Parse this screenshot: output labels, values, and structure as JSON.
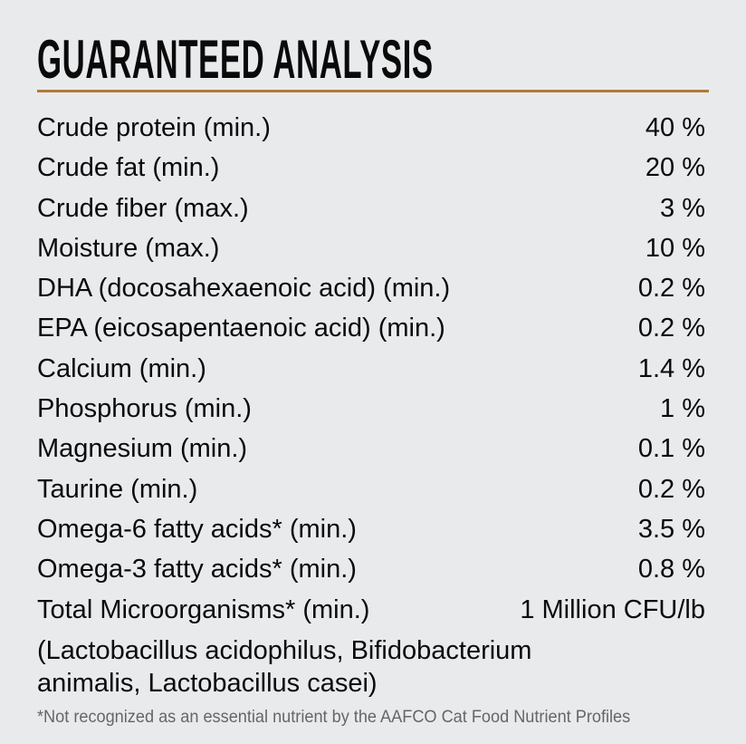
{
  "title": "GUARANTEED ANALYSIS",
  "accent_color": "#b07a3a",
  "rows": [
    {
      "label": "Crude protein (min.)",
      "value": "40 %"
    },
    {
      "label": "Crude fat (min.)",
      "value": "20 %"
    },
    {
      "label": "Crude fiber (max.)",
      "value": "3 %"
    },
    {
      "label": "Moisture (max.)",
      "value": "10 %"
    },
    {
      "label": "DHA (docosahexaenoic acid) (min.)",
      "value": "0.2 %"
    },
    {
      "label": "EPA (eicosapentaenoic acid) (min.)",
      "value": "0.2 %"
    },
    {
      "label": "Calcium (min.)",
      "value": "1.4 %"
    },
    {
      "label": "Phosphorus (min.)",
      "value": "1 %"
    },
    {
      "label": "Magnesium (min.)",
      "value": "0.1 %"
    },
    {
      "label": "Taurine (min.)",
      "value": "0.2 %"
    },
    {
      "label": "Omega-6 fatty acids* (min.)",
      "value": "3.5 %"
    },
    {
      "label": "Omega-3 fatty acids* (min.)",
      "value": "0.8 %"
    },
    {
      "label": "Total Microorganisms* (min.)",
      "value": "1 Million CFU/lb"
    }
  ],
  "strains_line1": "(Lactobacillus acidophilus, Bifidobacterium",
  "strains_line2": "animalis, Lactobacillus casei)",
  "footnote": "*Not recognized as an essential nutrient by the AAFCO Cat Food Nutrient Profiles"
}
